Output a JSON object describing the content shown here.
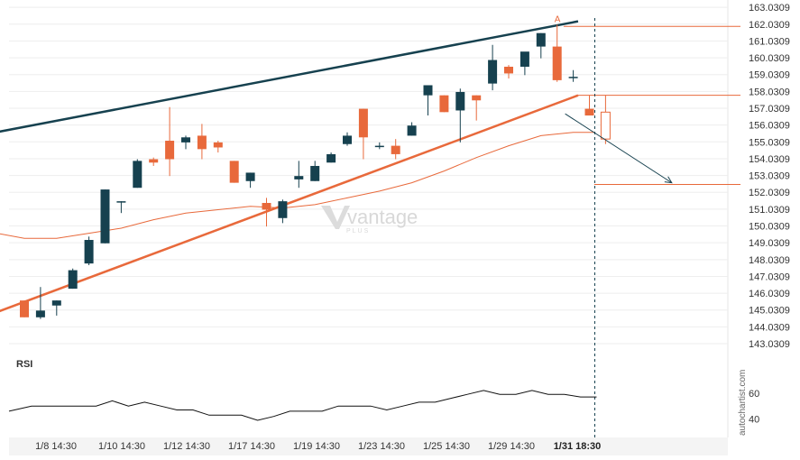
{
  "chart_data": {
    "type": "candlestick",
    "price_axis": {
      "ticks": [
        "163.0309",
        "162.0309",
        "161.0309",
        "160.0309",
        "159.0309",
        "158.0309",
        "157.0309",
        "156.0309",
        "155.0309",
        "154.0309",
        "153.0309",
        "152.0309",
        "151.0309",
        "150.0309",
        "149.0309",
        "148.0309",
        "147.0309",
        "146.0309",
        "145.0309",
        "144.0309",
        "143.0309"
      ],
      "range": [
        142.55,
        163.2
      ]
    },
    "time_axis": {
      "ticks": [
        "1/8 14:30",
        "1/10 14:30",
        "1/12 14:30",
        "1/17 14:30",
        "1/19 14:30",
        "1/23 14:30",
        "1/25 14:30",
        "1/29 14:30",
        "1/31 18:30"
      ],
      "current_label": "1/31 18:30"
    },
    "candles": [
      {
        "o": 145.6,
        "h": 145.6,
        "l": 144.6,
        "c": 144.6
      },
      {
        "o": 144.6,
        "h": 146.4,
        "l": 144.5,
        "c": 145.0
      },
      {
        "o": 145.3,
        "h": 145.6,
        "l": 144.7,
        "c": 145.6
      },
      {
        "o": 146.3,
        "h": 147.5,
        "l": 146.3,
        "c": 147.4
      },
      {
        "o": 147.8,
        "h": 149.4,
        "l": 147.7,
        "c": 149.2
      },
      {
        "o": 149.0,
        "h": 152.2,
        "l": 149.0,
        "c": 152.2
      },
      {
        "o": 151.5,
        "h": 151.5,
        "l": 150.8,
        "c": 151.5
      },
      {
        "o": 152.3,
        "h": 154.0,
        "l": 152.3,
        "c": 153.9
      },
      {
        "o": 154.0,
        "h": 154.1,
        "l": 153.6,
        "c": 153.8
      },
      {
        "o": 155.1,
        "h": 157.1,
        "l": 153.0,
        "c": 154.0
      },
      {
        "o": 155.0,
        "h": 155.4,
        "l": 154.6,
        "c": 155.3
      },
      {
        "o": 155.4,
        "h": 156.1,
        "l": 154.0,
        "c": 154.6
      },
      {
        "o": 155.0,
        "h": 155.1,
        "l": 154.4,
        "c": 154.7
      },
      {
        "o": 153.9,
        "h": 153.9,
        "l": 152.6,
        "c": 152.6
      },
      {
        "o": 152.7,
        "h": 153.2,
        "l": 152.3,
        "c": 153.2
      },
      {
        "o": 151.4,
        "h": 151.7,
        "l": 150.0,
        "c": 151.0
      },
      {
        "o": 150.5,
        "h": 151.6,
        "l": 150.2,
        "c": 151.5
      },
      {
        "o": 152.8,
        "h": 153.9,
        "l": 152.3,
        "c": 153.0
      },
      {
        "o": 152.7,
        "h": 153.9,
        "l": 152.7,
        "c": 153.6
      },
      {
        "o": 153.8,
        "h": 154.4,
        "l": 153.8,
        "c": 154.3
      },
      {
        "o": 154.9,
        "h": 155.6,
        "l": 154.8,
        "c": 155.4
      },
      {
        "o": 157.0,
        "h": 157.0,
        "l": 154.0,
        "c": 155.3
      },
      {
        "o": 154.8,
        "h": 155.0,
        "l": 154.6,
        "c": 154.8
      },
      {
        "o": 154.8,
        "h": 155.2,
        "l": 154.0,
        "c": 154.3
      },
      {
        "o": 155.4,
        "h": 156.2,
        "l": 155.4,
        "c": 156.0
      },
      {
        "o": 157.8,
        "h": 158.3,
        "l": 156.6,
        "c": 158.4
      },
      {
        "o": 157.8,
        "h": 157.8,
        "l": 156.8,
        "c": 156.8
      },
      {
        "o": 156.9,
        "h": 158.2,
        "l": 155.0,
        "c": 158.0
      },
      {
        "o": 157.8,
        "h": 157.8,
        "l": 156.3,
        "c": 157.5
      },
      {
        "o": 158.5,
        "h": 160.8,
        "l": 158.1,
        "c": 159.9
      },
      {
        "o": 159.5,
        "h": 159.6,
        "l": 158.8,
        "c": 159.1
      },
      {
        "o": 159.5,
        "h": 160.3,
        "l": 159.0,
        "c": 160.4
      },
      {
        "o": 160.7,
        "h": 161.5,
        "l": 160.0,
        "c": 161.5
      },
      {
        "o": 160.7,
        "h": 162.0,
        "l": 158.6,
        "c": 158.7
      },
      {
        "o": 158.9,
        "h": 159.3,
        "l": 158.6,
        "c": 158.9
      },
      {
        "o": 157.0,
        "h": 157.8,
        "l": 156.7,
        "c": 156.6
      }
    ],
    "projection_candle": {
      "o": 156.8,
      "h": 157.8,
      "l": 154.9,
      "c": 155.2
    },
    "pattern_lines": [
      {
        "name": "upper",
        "color": "#16414f",
        "from": {
          "bar": -3.4,
          "price": 155.3
        },
        "to": {
          "bar": 34.3,
          "price": 162.2
        }
      },
      {
        "name": "lower",
        "color": "#e8693b",
        "from": {
          "bar": -3.4,
          "price": 144.3
        },
        "to": {
          "bar": 34.3,
          "price": 157.8
        }
      }
    ],
    "levels": [
      {
        "price": 161.9,
        "from_bar": 33.4
      },
      {
        "price": 157.8,
        "from_bar": 34.3
      },
      {
        "price": 152.5,
        "from_bar": 35.3
      }
    ],
    "forecast_arrow": {
      "from": {
        "bar": 33.5,
        "price": 156.7
      },
      "to": {
        "bar": 40.1,
        "price": 152.6
      }
    },
    "moving_average": [
      {
        "bar": -3.4,
        "price": 149.9
      },
      {
        "bar": 0,
        "price": 149.3
      },
      {
        "bar": 2,
        "price": 149.3
      },
      {
        "bar": 4,
        "price": 149.6
      },
      {
        "bar": 6,
        "price": 149.9
      },
      {
        "bar": 8,
        "price": 150.4
      },
      {
        "bar": 10,
        "price": 150.8
      },
      {
        "bar": 12,
        "price": 151.0
      },
      {
        "bar": 14,
        "price": 151.2
      },
      {
        "bar": 16,
        "price": 151.1
      },
      {
        "bar": 18,
        "price": 151.3
      },
      {
        "bar": 20,
        "price": 151.7
      },
      {
        "bar": 22,
        "price": 152.1
      },
      {
        "bar": 24,
        "price": 152.6
      },
      {
        "bar": 26,
        "price": 153.3
      },
      {
        "bar": 28,
        "price": 154.1
      },
      {
        "bar": 30,
        "price": 154.8
      },
      {
        "bar": 32,
        "price": 155.4
      },
      {
        "bar": 34,
        "price": 155.6
      },
      {
        "bar": 35.3,
        "price": 155.6
      }
    ],
    "current_marker": "A",
    "rsi": {
      "label": "RSI",
      "ticks": [
        "60",
        "40"
      ],
      "range": [
        25.8,
        81.4
      ],
      "values": [
        46,
        50,
        50,
        50,
        50,
        50,
        54,
        50,
        53,
        50,
        47,
        47,
        43,
        43,
        43,
        39,
        42,
        46,
        46,
        46,
        50,
        50,
        50,
        47,
        50,
        53,
        53,
        56,
        59,
        62,
        59,
        59,
        62,
        59,
        59,
        57,
        57
      ]
    },
    "watermark": {
      "word": "vantage",
      "sub": "PLUS"
    },
    "brand": "autochartist.com"
  },
  "colors": {
    "bull": "#16414f",
    "bear": "#e8693b",
    "grid": "#eeeeee",
    "axis_bg": "#f4f4f4"
  }
}
